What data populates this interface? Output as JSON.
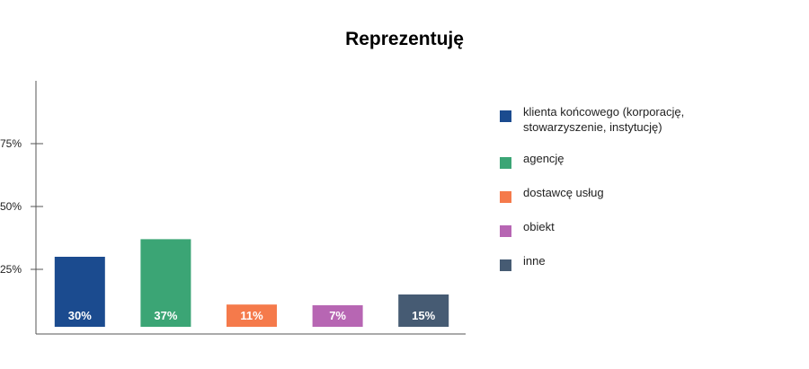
{
  "chart_data": {
    "type": "bar",
    "title": "Reprezentuję",
    "categories": [
      "klienta końcowego (korporację, stowarzyszenie, instytucję)",
      "agencję",
      "dostawcę usług",
      "obiekt",
      "inne"
    ],
    "values": [
      30,
      37,
      11,
      7,
      15
    ],
    "value_labels": [
      "30%",
      "37%",
      "11%",
      "7%",
      "15%"
    ],
    "colors": [
      "#1b4b8f",
      "#3ba575",
      "#f57a4b",
      "#b766b3",
      "#465b73"
    ],
    "y_ticks": [
      25,
      50,
      75
    ],
    "y_tick_labels": [
      "25%",
      "50%",
      "75%"
    ],
    "ylim": [
      0,
      100
    ],
    "grid": false,
    "legend_position": "right"
  }
}
